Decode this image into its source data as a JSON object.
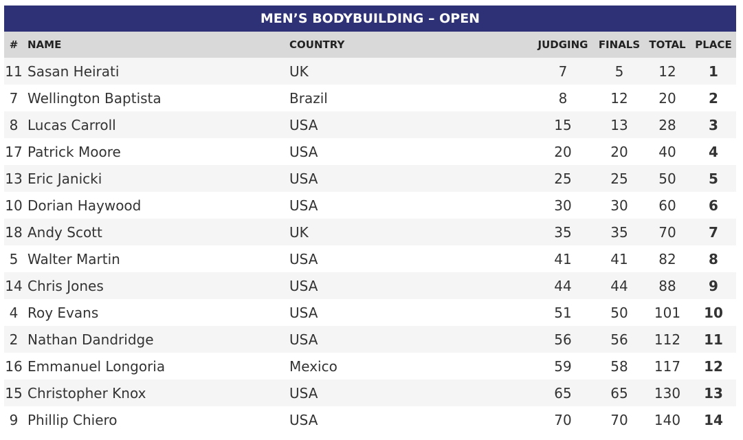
{
  "table": {
    "title": "MEN’S BODYBUILDING – OPEN",
    "headers": [
      "#",
      "NAME",
      "COUNTRY",
      "JUDGING",
      "FINALS",
      "TOTAL",
      "PLACE"
    ],
    "rows": [
      [
        11,
        "Sasan Heirati",
        "UK",
        7,
        5,
        12,
        1
      ],
      [
        7,
        "Wellington Baptista",
        "Brazil",
        8,
        12,
        20,
        2
      ],
      [
        8,
        "Lucas Carroll",
        "USA",
        15,
        13,
        28,
        3
      ],
      [
        17,
        "Patrick Moore",
        "USA",
        20,
        20,
        40,
        4
      ],
      [
        13,
        "Eric Janicki",
        "USA",
        25,
        25,
        50,
        5
      ],
      [
        10,
        "Dorian Haywood",
        "USA",
        30,
        30,
        60,
        6
      ],
      [
        18,
        "Andy Scott",
        "UK",
        35,
        35,
        70,
        7
      ],
      [
        5,
        "Walter Martin",
        "USA",
        41,
        41,
        82,
        8
      ],
      [
        14,
        "Chris Jones",
        "USA",
        44,
        44,
        88,
        9
      ],
      [
        4,
        "Roy Evans",
        "USA",
        51,
        50,
        101,
        10
      ],
      [
        2,
        "Nathan Dandridge",
        "USA",
        56,
        56,
        112,
        11
      ],
      [
        16,
        "Emmanuel Longoria",
        "Mexico",
        59,
        58,
        117,
        12
      ],
      [
        15,
        "Christopher Knox",
        "USA",
        65,
        65,
        130,
        13
      ],
      [
        9,
        "Phillip Chiero",
        "USA",
        70,
        70,
        140,
        14
      ]
    ]
  }
}
